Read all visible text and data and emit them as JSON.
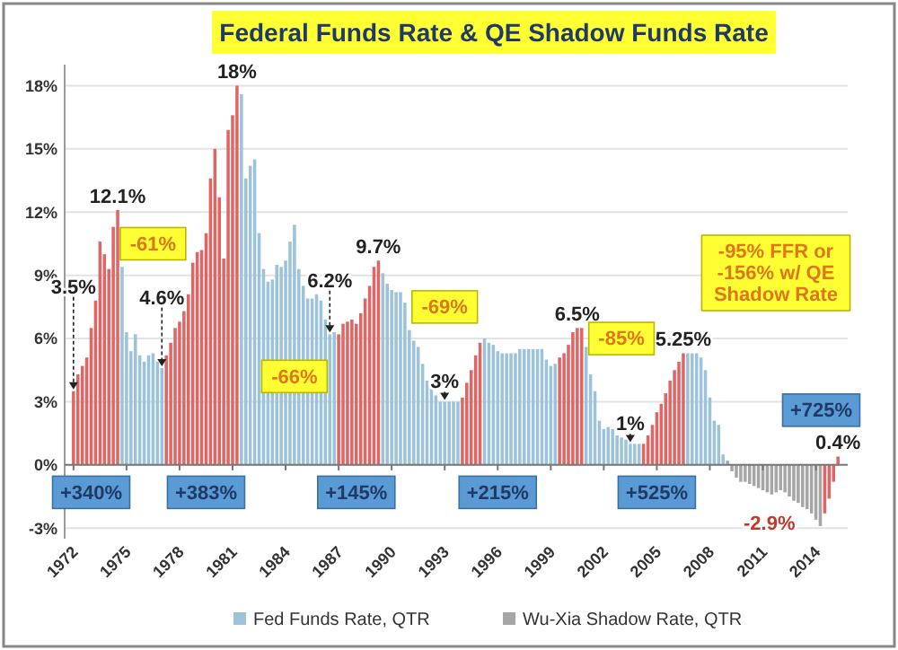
{
  "chart_data": {
    "type": "bar",
    "title": "Federal Funds Rate & QE Shadow Funds Rate",
    "xlim": [
      1971.5,
      2015.8
    ],
    "xticks": [
      1972,
      1975,
      1978,
      1981,
      1984,
      1987,
      1990,
      1993,
      1996,
      1999,
      2002,
      2005,
      2008,
      2011,
      2014
    ],
    "ylim": [
      -3.5,
      19
    ],
    "yticks": [
      {
        "value": -3,
        "label": "-3%"
      },
      {
        "value": 0,
        "label": "0%"
      },
      {
        "value": 3,
        "label": "3%"
      },
      {
        "value": 6,
        "label": "6%"
      },
      {
        "value": 9,
        "label": "9%"
      },
      {
        "value": 12,
        "label": "12%"
      },
      {
        "value": 15,
        "label": "15%"
      },
      {
        "value": 18,
        "label": "18%"
      }
    ],
    "grid": "y",
    "legend": "bottom",
    "series": [
      {
        "name": "Fed Funds Rate, QTR",
        "color": "#9cc3da",
        "x": [
          1972,
          1972.25,
          1972.5,
          1972.75,
          1973,
          1973.25,
          1973.5,
          1973.75,
          1974,
          1974.25,
          1974.5,
          1974.75,
          1975,
          1975.25,
          1975.5,
          1975.75,
          1976,
          1976.25,
          1976.5,
          1976.75,
          1977,
          1977.25,
          1977.5,
          1977.75,
          1978,
          1978.25,
          1978.5,
          1978.75,
          1979,
          1979.25,
          1979.5,
          1979.75,
          1980,
          1980.25,
          1980.5,
          1980.75,
          1981,
          1981.25,
          1981.5,
          1981.75,
          1982,
          1982.25,
          1982.5,
          1982.75,
          1983,
          1983.25,
          1983.5,
          1983.75,
          1984,
          1984.25,
          1984.5,
          1984.75,
          1985,
          1985.25,
          1985.5,
          1985.75,
          1986,
          1986.25,
          1986.5,
          1986.75,
          1987,
          1987.25,
          1987.5,
          1987.75,
          1988,
          1988.25,
          1988.5,
          1988.75,
          1989,
          1989.25,
          1989.5,
          1989.75,
          1990,
          1990.25,
          1990.5,
          1990.75,
          1991,
          1991.25,
          1991.5,
          1991.75,
          1992,
          1992.25,
          1992.5,
          1992.75,
          1993,
          1993.25,
          1993.5,
          1993.75,
          1994,
          1994.25,
          1994.5,
          1994.75,
          1995,
          1995.25,
          1995.5,
          1995.75,
          1996,
          1996.25,
          1996.5,
          1996.75,
          1997,
          1997.25,
          1997.5,
          1997.75,
          1998,
          1998.25,
          1998.5,
          1998.75,
          1999,
          1999.25,
          1999.5,
          1999.75,
          2000,
          2000.25,
          2000.5,
          2000.75,
          2001,
          2001.25,
          2001.5,
          2001.75,
          2002,
          2002.25,
          2002.5,
          2002.75,
          2003,
          2003.25,
          2003.5,
          2003.75,
          2004,
          2004.25,
          2004.5,
          2004.75,
          2005,
          2005.25,
          2005.5,
          2005.75,
          2006,
          2006.25,
          2006.5,
          2006.75,
          2007,
          2007.25,
          2007.5,
          2007.75,
          2008,
          2008.25,
          2008.5,
          2008.75
        ],
        "values": [
          3.5,
          4.3,
          4.7,
          5.1,
          6.5,
          7.8,
          10.6,
          10.0,
          9.3,
          11.3,
          12.1,
          9.4,
          6.3,
          5.4,
          6.2,
          5.2,
          4.9,
          5.2,
          5.3,
          4.9,
          4.6,
          5.2,
          5.8,
          6.5,
          6.8,
          7.3,
          8.1,
          9.6,
          10.1,
          10.2,
          11.0,
          13.6,
          15.0,
          12.7,
          9.8,
          15.9,
          16.6,
          18.0,
          17.6,
          13.6,
          14.2,
          14.5,
          11.0,
          9.3,
          8.7,
          8.8,
          9.5,
          9.4,
          9.7,
          10.6,
          11.4,
          9.3,
          8.5,
          7.9,
          7.9,
          8.1,
          7.8,
          6.9,
          6.2,
          6.3,
          6.2,
          6.7,
          6.8,
          6.9,
          6.7,
          7.2,
          7.9,
          8.5,
          9.4,
          9.7,
          9.1,
          8.6,
          8.3,
          8.2,
          8.2,
          7.7,
          6.4,
          5.9,
          5.6,
          4.8,
          4.0,
          3.8,
          3.3,
          3.0,
          3.0,
          3.0,
          3.0,
          3.0,
          3.2,
          3.9,
          4.5,
          5.2,
          5.8,
          6.0,
          5.8,
          5.7,
          5.4,
          5.3,
          5.3,
          5.3,
          5.3,
          5.5,
          5.5,
          5.5,
          5.5,
          5.5,
          5.5,
          5.0,
          4.7,
          4.8,
          5.1,
          5.3,
          5.7,
          6.3,
          6.5,
          6.5,
          5.6,
          4.3,
          3.5,
          2.1,
          1.7,
          1.8,
          1.7,
          1.4,
          1.3,
          1.2,
          1.0,
          1.0,
          1.0,
          1.0,
          1.4,
          1.9,
          2.5,
          2.9,
          3.4,
          4.0,
          4.5,
          4.9,
          5.3,
          5.3,
          5.3,
          5.3,
          5.1,
          4.5,
          3.2,
          2.1,
          1.9,
          0.5
        ],
        "colors": [
          "#e06666",
          "#e06666",
          "#e06666",
          "#e06666",
          "#e06666",
          "#e06666",
          "#e06666",
          "#e06666",
          "#e06666",
          "#e06666",
          "#e06666",
          "#9cc3da",
          "#9cc3da",
          "#9cc3da",
          "#9cc3da",
          "#9cc3da",
          "#9cc3da",
          "#9cc3da",
          "#9cc3da",
          "#9cc3da",
          "#9cc3da",
          "#e06666",
          "#e06666",
          "#e06666",
          "#e06666",
          "#e06666",
          "#e06666",
          "#e06666",
          "#e06666",
          "#e06666",
          "#e06666",
          "#e06666",
          "#e06666",
          "#e06666",
          "#e06666",
          "#e06666",
          "#e06666",
          "#e06666",
          "#9cc3da",
          "#9cc3da",
          "#9cc3da",
          "#9cc3da",
          "#9cc3da",
          "#9cc3da",
          "#9cc3da",
          "#9cc3da",
          "#9cc3da",
          "#9cc3da",
          "#9cc3da",
          "#9cc3da",
          "#9cc3da",
          "#9cc3da",
          "#9cc3da",
          "#9cc3da",
          "#9cc3da",
          "#9cc3da",
          "#9cc3da",
          "#9cc3da",
          "#9cc3da",
          "#9cc3da",
          "#e06666",
          "#e06666",
          "#e06666",
          "#e06666",
          "#e06666",
          "#e06666",
          "#e06666",
          "#e06666",
          "#e06666",
          "#e06666",
          "#9cc3da",
          "#9cc3da",
          "#9cc3da",
          "#9cc3da",
          "#9cc3da",
          "#9cc3da",
          "#9cc3da",
          "#9cc3da",
          "#9cc3da",
          "#9cc3da",
          "#9cc3da",
          "#9cc3da",
          "#9cc3da",
          "#9cc3da",
          "#9cc3da",
          "#9cc3da",
          "#9cc3da",
          "#9cc3da",
          "#e06666",
          "#e06666",
          "#e06666",
          "#e06666",
          "#e06666",
          "#9cc3da",
          "#9cc3da",
          "#9cc3da",
          "#9cc3da",
          "#9cc3da",
          "#9cc3da",
          "#9cc3da",
          "#9cc3da",
          "#9cc3da",
          "#9cc3da",
          "#9cc3da",
          "#9cc3da",
          "#9cc3da",
          "#9cc3da",
          "#9cc3da",
          "#9cc3da",
          "#9cc3da",
          "#e06666",
          "#e06666",
          "#e06666",
          "#e06666",
          "#e06666",
          "#e06666",
          "#9cc3da",
          "#9cc3da",
          "#9cc3da",
          "#9cc3da",
          "#9cc3da",
          "#9cc3da",
          "#9cc3da",
          "#9cc3da",
          "#9cc3da",
          "#9cc3da",
          "#9cc3da",
          "#9cc3da",
          "#9cc3da",
          "#e06666",
          "#e06666",
          "#e06666",
          "#e06666",
          "#e06666",
          "#e06666",
          "#e06666",
          "#e06666",
          "#e06666",
          "#e06666",
          "#9cc3da",
          "#9cc3da",
          "#9cc3da",
          "#9cc3da",
          "#9cc3da",
          "#9cc3da",
          "#9cc3da",
          "#9cc3da",
          "#9cc3da"
        ]
      },
      {
        "name": "Wu-Xia Shadow Rate, QTR",
        "color": "#a6a6a6",
        "x": [
          2009,
          2009.25,
          2009.5,
          2009.75,
          2010,
          2010.25,
          2010.5,
          2010.75,
          2011,
          2011.25,
          2011.5,
          2011.75,
          2012,
          2012.25,
          2012.5,
          2012.75,
          2013,
          2013.25,
          2013.5,
          2013.75,
          2014,
          2014.25,
          2014.5,
          2014.75,
          2015,
          2015.25
        ],
        "values": [
          0.2,
          -0.3,
          -0.6,
          -0.8,
          -0.8,
          -0.9,
          -1.0,
          -1.1,
          -1.2,
          -1.3,
          -1.4,
          -1.3,
          -1.2,
          -1.3,
          -1.5,
          -1.7,
          -1.8,
          -2.0,
          -2.1,
          -2.3,
          -2.6,
          -2.9,
          -2.3,
          -1.6,
          -0.8,
          0.4
        ],
        "colors": [
          "#a6a6a6",
          "#a6a6a6",
          "#a6a6a6",
          "#a6a6a6",
          "#a6a6a6",
          "#a6a6a6",
          "#a6a6a6",
          "#a6a6a6",
          "#a6a6a6",
          "#a6a6a6",
          "#a6a6a6",
          "#a6a6a6",
          "#a6a6a6",
          "#a6a6a6",
          "#a6a6a6",
          "#a6a6a6",
          "#a6a6a6",
          "#a6a6a6",
          "#a6a6a6",
          "#a6a6a6",
          "#a6a6a6",
          "#a6a6a6",
          "#e06666",
          "#e06666",
          "#e06666",
          "#e06666"
        ]
      }
    ],
    "annotations": [
      {
        "text": "3.5%",
        "x": 1972,
        "y": 3.5
      },
      {
        "text": "12.1%",
        "x": 1974.5,
        "y": 12.1
      },
      {
        "text": "18%",
        "x": 1981.25,
        "y": 18
      },
      {
        "text": "4.6%",
        "x": 1977,
        "y": 4.6
      },
      {
        "text": "6.2%",
        "x": 1986.5,
        "y": 6.2
      },
      {
        "text": "9.7%",
        "x": 1989.25,
        "y": 9.7
      },
      {
        "text": "3%",
        "x": 1993,
        "y": 3
      },
      {
        "text": "6.5%",
        "x": 2000.5,
        "y": 6.5
      },
      {
        "text": "1%",
        "x": 2003.5,
        "y": 1
      },
      {
        "text": "5.25%",
        "x": 2006.5,
        "y": 5.3
      },
      {
        "text": "-2.9%",
        "x": 2014.25,
        "y": -2.9
      },
      {
        "text": "0.4%",
        "x": 2015.25,
        "y": 0.4
      },
      {
        "text": "-61%",
        "x": 1976.5,
        "y": 10.5
      },
      {
        "text": "-66%",
        "x": 1984.5,
        "y": 4.2
      },
      {
        "text": "-69%",
        "x": 1993,
        "y": 7.5
      },
      {
        "text": "-85%",
        "x": 2003,
        "y": 6
      },
      "-95% FFR or -156% w/ QE Shadow Rate",
      {
        "text": "+340%",
        "x": 1973,
        "y": -1.3
      },
      {
        "text": "+383%",
        "x": 1979.5,
        "y": -1.3
      },
      {
        "text": "+145%",
        "x": 1988,
        "y": -1.3
      },
      {
        "text": "+215%",
        "x": 1996,
        "y": -1.3
      },
      {
        "text": "+525%",
        "x": 2005,
        "y": -1.3
      },
      {
        "text": "+725%",
        "x": 2014.3,
        "y": 2.6
      }
    ]
  }
}
